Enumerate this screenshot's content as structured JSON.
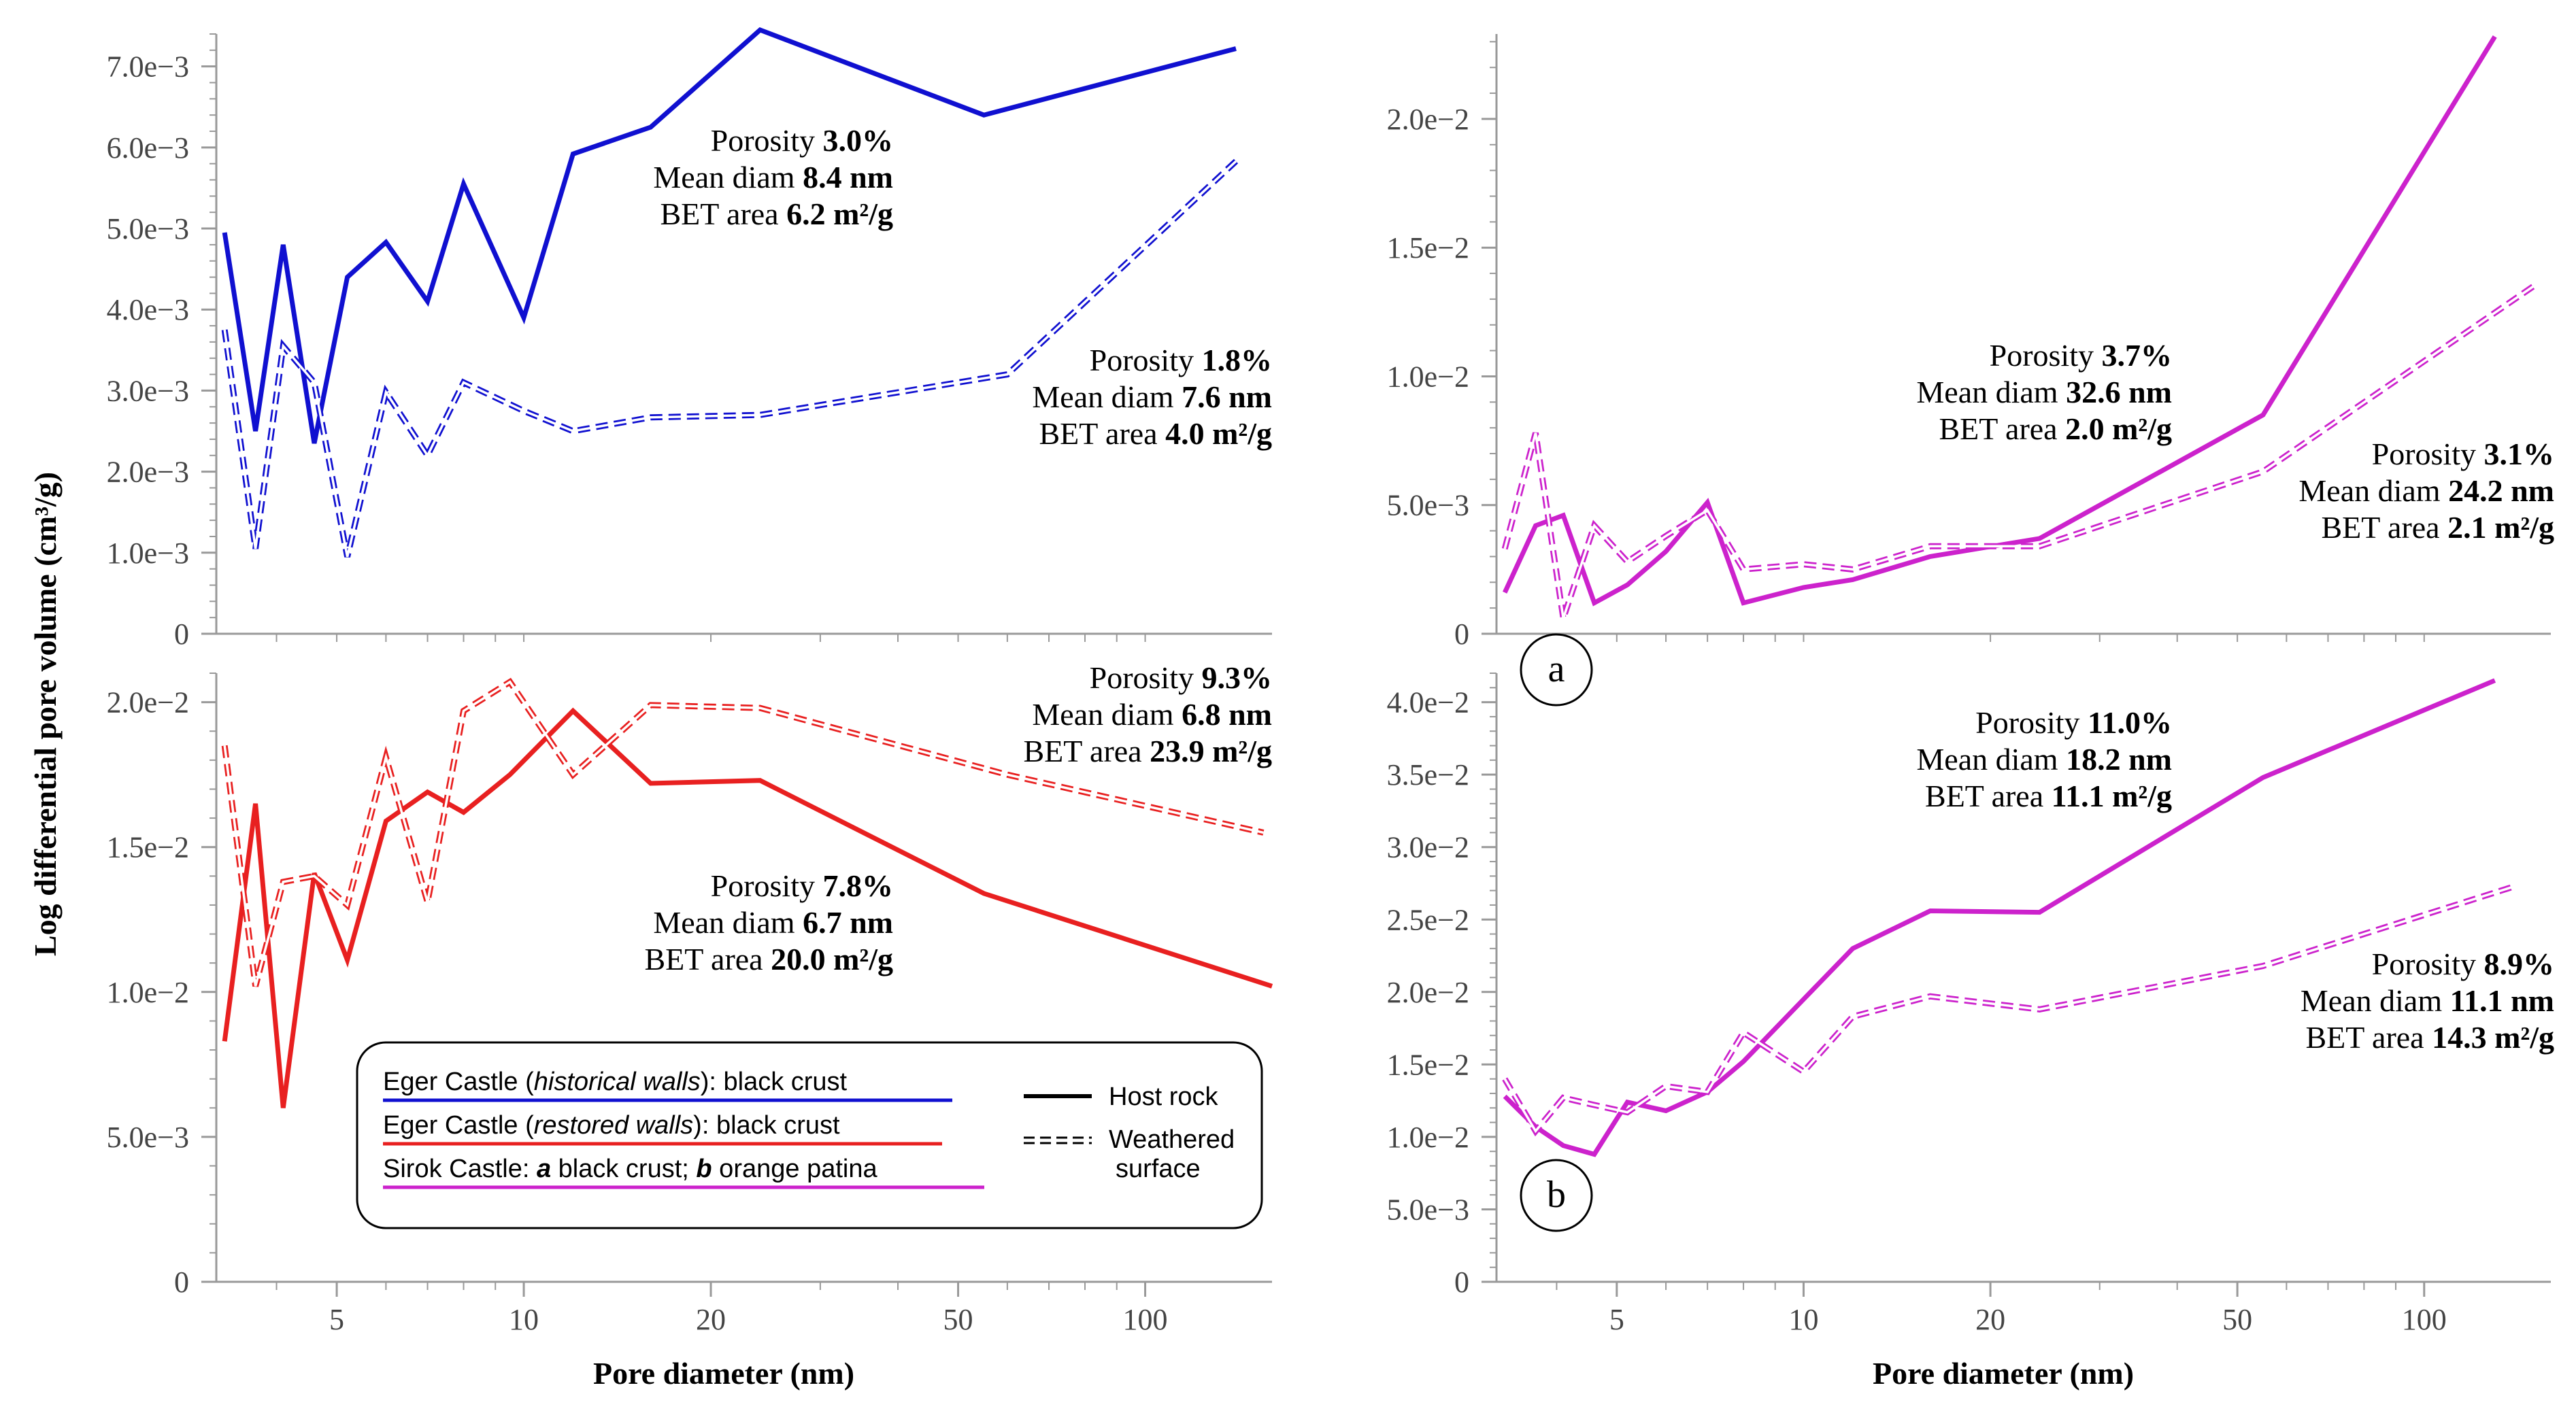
{
  "y_axis_title": "Log differential pore volume (cm³/g)",
  "panel_labels": [
    "a",
    "b"
  ],
  "legend": {
    "samples": [
      {
        "prefix": "Eger Castle (",
        "italic": "historical walls",
        "suffix": "): black crust",
        "color": "#1010d0"
      },
      {
        "prefix": "Eger Castle (",
        "italic": "restored walls",
        "suffix": "): black crust",
        "color": "#e82020"
      },
      {
        "prefix": "Sirok Castle: ",
        "bold_a": "a",
        "mid": " black crust; ",
        "bold_b": "b",
        "suffix": " orange patina",
        "color": "#cc22cc"
      }
    ],
    "styles": [
      "Host rock",
      "Weathered",
      "surface"
    ]
  },
  "chart_data": [
    {
      "id": "eger-historical",
      "type": "line",
      "x_scale": "log",
      "xlim": [
        3.2,
        160
      ],
      "ylim": [
        0,
        0.0074
      ],
      "y_ticks": [
        0,
        0.001,
        0.002,
        0.003,
        0.004,
        0.005,
        0.006,
        0.007
      ],
      "y_tick_labels": [
        "0",
        "1.0e−3",
        "2.0e−3",
        "3.0e−3",
        "4.0e−3",
        "5.0e−3",
        "6.0e−3",
        "7.0e−3"
      ],
      "x_ticks": [],
      "x_tick_labels": [],
      "xlabel": "",
      "color": "#1010d0",
      "series": [
        {
          "style": "Host rock",
          "x": [
            3.3,
            3.7,
            4.1,
            4.6,
            5.2,
            6.0,
            7.0,
            8.0,
            10,
            12,
            16,
            24,
            55,
            140
          ],
          "y": [
            0.00495,
            0.0025,
            0.0048,
            0.00235,
            0.0044,
            0.00483,
            0.0041,
            0.00555,
            0.0039,
            0.00592,
            0.00625,
            0.00745,
            0.0064,
            0.00722
          ]
        },
        {
          "style": "Weathered surface",
          "x": [
            3.3,
            3.7,
            4.1,
            4.6,
            5.2,
            6.0,
            7.0,
            8.0,
            10,
            12,
            16,
            24,
            60,
            140
          ],
          "y": [
            0.00375,
            0.00105,
            0.00355,
            0.0031,
            0.00095,
            0.00298,
            0.0022,
            0.0031,
            0.00275,
            0.0025,
            0.00267,
            0.0027,
            0.0032,
            0.00583
          ]
        }
      ],
      "annotations": [
        {
          "lines": [
            [
              "Porosity ",
              "3.0%"
            ],
            [
              "Mean diam ",
              "8.4 nm"
            ],
            [
              "BET area ",
              "6.2 m²/g"
            ]
          ]
        },
        {
          "lines": [
            [
              "Porosity ",
              "1.8%"
            ],
            [
              "Mean diam ",
              "7.6 nm"
            ],
            [
              "BET area ",
              "4.0 m²/g"
            ]
          ]
        }
      ]
    },
    {
      "id": "eger-restored",
      "type": "line",
      "x_scale": "log",
      "xlim": [
        3.2,
        160
      ],
      "ylim": [
        0,
        0.021
      ],
      "y_ticks": [
        0,
        0.005,
        0.01,
        0.015,
        0.02
      ],
      "y_tick_labels": [
        "0",
        "5.0e−3",
        "1.0e−2",
        "1.5e−2",
        "2.0e−2"
      ],
      "x_ticks": [
        5,
        10,
        20,
        50,
        100
      ],
      "x_tick_labels": [
        "5",
        "10",
        "20",
        "50",
        "100"
      ],
      "xlabel": "Pore diameter (nm)",
      "color": "#e82020",
      "series": [
        {
          "style": "Host rock",
          "x": [
            3.3,
            3.7,
            4.1,
            4.6,
            5.2,
            6.0,
            7.0,
            8.0,
            9.5,
            12,
            16,
            24,
            55,
            160
          ],
          "y": [
            0.0083,
            0.0165,
            0.006,
            0.0141,
            0.0111,
            0.0159,
            0.0169,
            0.0162,
            0.0175,
            0.0197,
            0.0172,
            0.0173,
            0.0134,
            0.0102
          ]
        },
        {
          "style": "Weathered surface",
          "x": [
            3.3,
            3.7,
            4.1,
            4.6,
            5.2,
            6.0,
            7.0,
            8.0,
            9.5,
            12,
            16,
            24,
            60,
            155
          ],
          "y": [
            0.0185,
            0.0102,
            0.0138,
            0.014,
            0.013,
            0.0181,
            0.0131,
            0.0197,
            0.0207,
            0.0175,
            0.0199,
            0.0198,
            0.0175,
            0.0155
          ]
        }
      ],
      "annotations": [
        {
          "lines": [
            [
              "Porosity ",
              "9.3%"
            ],
            [
              "Mean diam ",
              "6.8 nm"
            ],
            [
              "BET area ",
              "23.9 m²/g"
            ]
          ]
        },
        {
          "lines": [
            [
              "Porosity ",
              "7.8%"
            ],
            [
              "Mean diam ",
              "6.7 nm"
            ],
            [
              "BET area ",
              "20.0 m²/g"
            ]
          ]
        }
      ]
    },
    {
      "id": "sirok-a",
      "type": "line",
      "x_scale": "log",
      "xlim": [
        3.2,
        160
      ],
      "ylim": [
        0,
        0.0233
      ],
      "y_ticks": [
        0,
        0.005,
        0.01,
        0.015,
        0.02
      ],
      "y_tick_labels": [
        "0",
        "5.0e−3",
        "1.0e−2",
        "1.5e−2",
        "2.0e−2"
      ],
      "x_ticks": [],
      "x_tick_labels": [],
      "xlabel": "",
      "color": "#cc22cc",
      "series": [
        {
          "style": "Host rock",
          "x": [
            3.3,
            3.7,
            4.1,
            4.6,
            5.2,
            6.0,
            7.0,
            8.0,
            10,
            12,
            16,
            24,
            55,
            130
          ],
          "y": [
            0.0016,
            0.0042,
            0.0046,
            0.0012,
            0.0019,
            0.0032,
            0.0051,
            0.0012,
            0.0018,
            0.0021,
            0.003,
            0.0037,
            0.0085,
            0.0232
          ]
        },
        {
          "style": "Weathered surface",
          "x": [
            3.3,
            3.7,
            4.1,
            4.6,
            5.2,
            6.0,
            7.0,
            8.0,
            10,
            12,
            16,
            24,
            55,
            150
          ],
          "y": [
            0.0033,
            0.0078,
            0.0006,
            0.0042,
            0.0028,
            0.0038,
            0.0048,
            0.0025,
            0.0027,
            0.0025,
            0.0034,
            0.0034,
            0.0063,
            0.0135
          ]
        }
      ],
      "annotations": [
        {
          "lines": [
            [
              "Porosity ",
              "3.7%"
            ],
            [
              "Mean diam ",
              "32.6 nm"
            ],
            [
              "BET area ",
              "2.0 m²/g"
            ]
          ]
        },
        {
          "lines": [
            [
              "Porosity ",
              "3.1%"
            ],
            [
              "Mean diam ",
              "24.2 nm"
            ],
            [
              "BET area ",
              "2.1 m²/g"
            ]
          ]
        }
      ]
    },
    {
      "id": "sirok-b",
      "type": "line",
      "x_scale": "log",
      "xlim": [
        3.2,
        160
      ],
      "ylim": [
        0,
        0.042
      ],
      "y_ticks": [
        0,
        0.005,
        0.01,
        0.015,
        0.02,
        0.025,
        0.03,
        0.035,
        0.04
      ],
      "y_tick_labels": [
        "0",
        "5.0e−3",
        "1.0e−2",
        "1.5e−2",
        "2.0e−2",
        "2.5e−2",
        "3.0e−2",
        "3.5e−2",
        "4.0e−2"
      ],
      "x_ticks": [
        5,
        10,
        20,
        50,
        100
      ],
      "x_tick_labels": [
        "5",
        "10",
        "20",
        "50",
        "100"
      ],
      "xlabel": "Pore diameter (nm)",
      "color": "#cc22cc",
      "series": [
        {
          "style": "Host rock",
          "x": [
            3.3,
            3.7,
            4.1,
            4.6,
            5.2,
            6.0,
            7.0,
            8.0,
            10,
            12,
            16,
            24,
            55,
            130
          ],
          "y": [
            0.0128,
            0.0107,
            0.0094,
            0.0088,
            0.0124,
            0.0118,
            0.0131,
            0.0152,
            0.0195,
            0.023,
            0.0256,
            0.0255,
            0.0348,
            0.0415
          ]
        },
        {
          "style": "Weathered surface",
          "x": [
            3.3,
            3.7,
            4.1,
            4.6,
            5.2,
            6.0,
            7.0,
            8.0,
            10,
            12,
            16,
            24,
            55,
            140
          ],
          "y": [
            0.014,
            0.0104,
            0.0127,
            0.0122,
            0.0117,
            0.0135,
            0.0131,
            0.0172,
            0.0145,
            0.0183,
            0.0197,
            0.0188,
            0.0218,
            0.0273
          ]
        }
      ],
      "annotations": [
        {
          "lines": [
            [
              "Porosity ",
              "11.0%"
            ],
            [
              "Mean diam ",
              "18.2 nm"
            ],
            [
              "BET area ",
              "11.1 m²/g"
            ]
          ]
        },
        {
          "lines": [
            [
              "Porosity ",
              "8.9%"
            ],
            [
              "Mean diam ",
              "11.1 nm"
            ],
            [
              "BET area ",
              "14.3 m²/g"
            ]
          ]
        }
      ]
    }
  ]
}
